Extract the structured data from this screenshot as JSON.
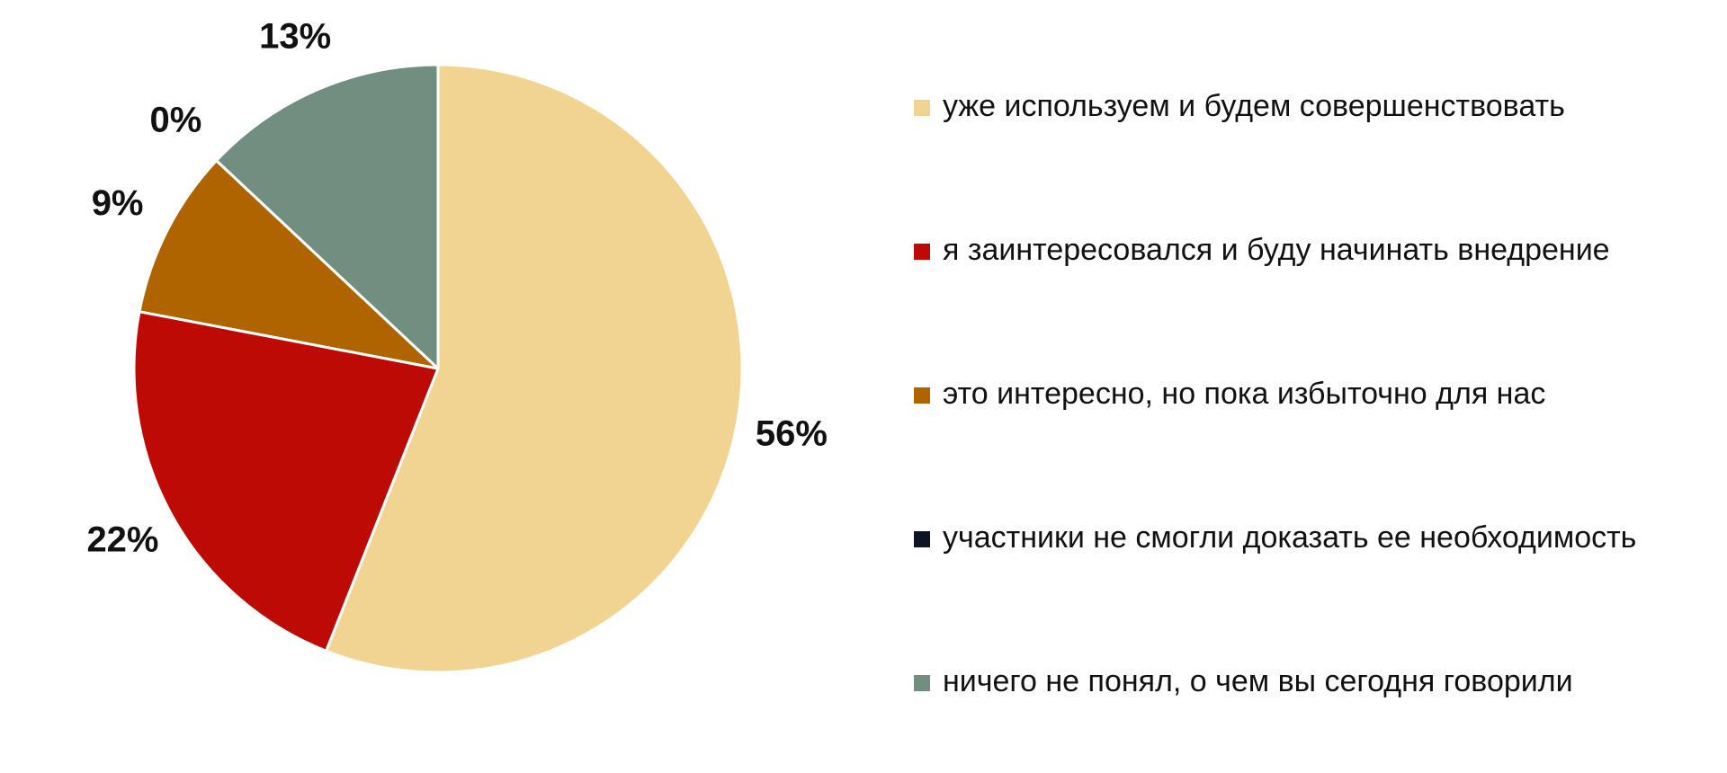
{
  "chart_data": {
    "type": "pie",
    "categories": [
      "уже используем и будем совершенствовать",
      "я заинтересовался и буду начинать внедрение",
      "это интересно, но пока избыточно для нас",
      "участники не смогли доказать ее необходимость",
      "ничего не понял, о чем вы сегодня говорили"
    ],
    "values": [
      56,
      22,
      9,
      0,
      13
    ],
    "value_labels": [
      "56%",
      "22%",
      "9%",
      "0%",
      "13%"
    ],
    "colors": [
      "#f2d492",
      "#be0a05",
      "#b06400",
      "#0d1424",
      "#728e80"
    ],
    "legend": "right"
  }
}
